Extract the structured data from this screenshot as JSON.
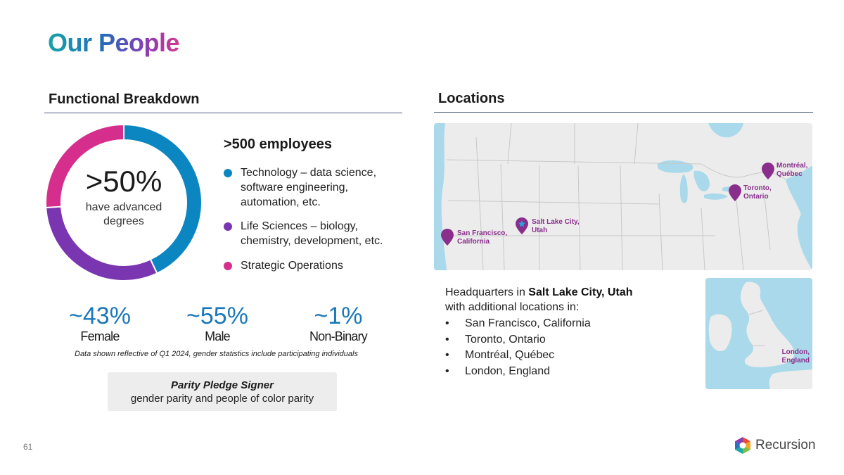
{
  "title": "Our People",
  "functional": {
    "heading": "Functional Breakdown",
    "donut_big": ">50%",
    "donut_sub": "have advanced degrees",
    "employees_title": ">500 employees",
    "legend": [
      {
        "label": "Technology – data science, software engineering, automation, etc.",
        "color": "#0c86c1"
      },
      {
        "label": "Life Sciences – biology, chemistry, development, etc.",
        "color": "#7a35b0"
      },
      {
        "label": "Strategic Operations",
        "color": "#d62e8c"
      }
    ]
  },
  "chart_data": {
    "type": "pie",
    "categories": [
      "Technology",
      "Life Sciences",
      "Strategic Operations"
    ],
    "values": [
      43,
      31,
      26
    ],
    "colors": [
      "#0c86c1",
      "#7a35b0",
      "#d62e8c"
    ]
  },
  "gender": {
    "stats": [
      {
        "value": "~43%",
        "label": "Female"
      },
      {
        "value": "~55%",
        "label": "Male"
      },
      {
        "value": "~1%",
        "label": "Non-Binary"
      }
    ],
    "footnote": "Data shown reflective of Q1 2024, gender statistics include participating individuals"
  },
  "pledge": {
    "title": "Parity Pledge Signer",
    "subtitle": "gender parity and people of color parity"
  },
  "locations": {
    "heading": "Locations",
    "pins": {
      "montreal": "Montréal, Québec",
      "toronto": "Toronto, Ontario",
      "slc": "Salt Lake City, Utah",
      "sf": "San Francisco, California",
      "london": "London, England"
    },
    "hq_prefix": "Headquarters in ",
    "hq_city": "Salt Lake City, Utah",
    "hq_suffix": "with additional locations in:",
    "list": [
      "San Francisco, California",
      "Toronto, Ontario",
      "Montréal, Québec",
      "London, England"
    ],
    "map_land_color": "#ececec",
    "map_water_color": "#a9d9ea",
    "pin_color": "#8a2e8c"
  },
  "page_number": "61",
  "logo_text": "Recursion"
}
